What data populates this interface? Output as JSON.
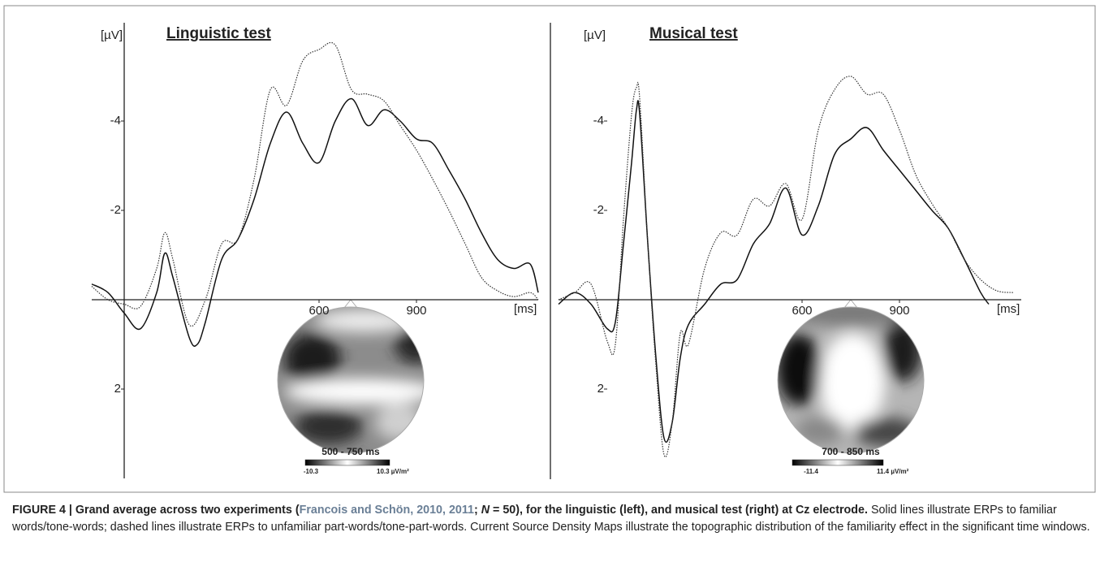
{
  "chart_data": [
    {
      "type": "line",
      "title": "Linguistic test",
      "y_label": "[µV]",
      "x_label": "[ms]",
      "xlim": [
        -100,
        1275
      ],
      "ylim": [
        4,
        -6.2
      ],
      "xticks": [
        600,
        900
      ],
      "yticks": [
        -4,
        -2,
        2
      ],
      "axis_line": true,
      "series": [
        {
          "color": "#111111",
          "style": "solid",
          "x": [
            -100,
            -50,
            0,
            50,
            100,
            125,
            150,
            200,
            225,
            250,
            300,
            350,
            400,
            450,
            500,
            550,
            600,
            650,
            700,
            750,
            800,
            850,
            900,
            950,
            1000,
            1050,
            1100,
            1150,
            1200,
            1250,
            1275
          ],
          "values": [
            -0.35,
            -0.16,
            0.3,
            0.65,
            -0.16,
            -1.04,
            -0.5,
            0.84,
            1.0,
            0.5,
            -0.9,
            -1.35,
            -2.25,
            -3.5,
            -4.2,
            -3.5,
            -3.07,
            -4.0,
            -4.5,
            -3.9,
            -4.25,
            -4.0,
            -3.6,
            -3.5,
            -2.9,
            -2.25,
            -1.5,
            -0.9,
            -0.7,
            -0.8,
            -0.16
          ]
        },
        {
          "color": "#333333",
          "style": "dotted",
          "x": [
            -100,
            -50,
            0,
            50,
            100,
            125,
            150,
            200,
            250,
            300,
            350,
            400,
            450,
            500,
            550,
            600,
            650,
            700,
            750,
            800,
            850,
            900,
            950,
            1000,
            1050,
            1100,
            1150,
            1200,
            1250,
            1275
          ],
          "values": [
            -0.3,
            0,
            0.1,
            0.15,
            -0.7,
            -1.5,
            -0.9,
            0.56,
            0,
            -1.25,
            -1.35,
            -2.7,
            -4.7,
            -4.35,
            -5.35,
            -5.6,
            -5.7,
            -4.7,
            -4.6,
            -4.45,
            -3.9,
            -3.35,
            -2.7,
            -2.0,
            -1.25,
            -0.5,
            -0.2,
            -0.07,
            -0.16,
            0
          ]
        }
      ],
      "topomap": {
        "window": "500 - 750 ms",
        "scale_min": "-10.3",
        "scale_max": "10.3 µV/m²"
      }
    },
    {
      "type": "line",
      "title": "Musical test",
      "y_label": "[µV]",
      "x_label": "[ms]",
      "xlim": [
        -150,
        1275
      ],
      "ylim": [
        4,
        -6.2
      ],
      "xticks": [
        600,
        900
      ],
      "yticks": [
        -4,
        -2,
        2
      ],
      "axis_line": false,
      "series": [
        {
          "color": "#111111",
          "style": "solid",
          "x": [
            -150,
            -100,
            -50,
            0,
            25,
            50,
            75,
            90,
            100,
            125,
            150,
            175,
            200,
            225,
            250,
            300,
            350,
            400,
            450,
            500,
            550,
            600,
            650,
            700,
            750,
            800,
            850,
            900,
            950,
            1000,
            1050,
            1100,
            1150,
            1175
          ],
          "values": [
            0.1,
            -0.16,
            0.1,
            0.65,
            0.5,
            -1.25,
            -3.07,
            -4.25,
            -4.15,
            -1.25,
            1.3,
            3.1,
            2.75,
            1.3,
            0.56,
            0.1,
            -0.35,
            -0.45,
            -1.25,
            -1.7,
            -2.5,
            -1.45,
            -2.1,
            -3.25,
            -3.6,
            -3.85,
            -3.35,
            -2.9,
            -2.45,
            -2.0,
            -1.6,
            -0.9,
            -0.16,
            0.1
          ]
        },
        {
          "color": "#333333",
          "style": "dotted",
          "x": [
            -150,
            -100,
            -50,
            0,
            25,
            50,
            75,
            90,
            100,
            125,
            150,
            175,
            200,
            225,
            250,
            300,
            350,
            400,
            450,
            500,
            550,
            600,
            650,
            700,
            750,
            800,
            850,
            900,
            950,
            1000,
            1050,
            1100,
            1150,
            1200,
            1250
          ],
          "values": [
            0,
            -0.16,
            -0.35,
            0.93,
            1.0,
            -1.8,
            -4.15,
            -4.75,
            -4.5,
            -1.25,
            1.47,
            3.47,
            2.75,
            0.75,
            1.0,
            -0.7,
            -1.5,
            -1.45,
            -2.25,
            -2.1,
            -2.6,
            -1.8,
            -3.8,
            -4.7,
            -5.0,
            -4.6,
            -4.6,
            -3.8,
            -2.8,
            -2.15,
            -1.6,
            -0.9,
            -0.45,
            -0.2,
            -0.16
          ]
        }
      ],
      "topomap": {
        "window": "700 - 850 ms",
        "scale_min": "-11.4",
        "scale_max": "11.4 µV/m²"
      }
    }
  ],
  "caption": {
    "bold_prefix": "FIGURE 4 | Grand average across two experiments (",
    "citation": "Francois and Schön, 2010, 2011",
    "bold_mid": "; ",
    "n_symbol": "N",
    "bold_suffix": " = 50), for the linguistic (left), and musical test (right) at Cz electrode.",
    "body": "Solid lines illustrate ERPs to familiar words/tone-words; dashed lines illustrate ERPs to unfamiliar part-words/tone-part-words. Current Source Density Maps illustrate the topographic distribution of the familiarity effect in the significant time windows."
  }
}
